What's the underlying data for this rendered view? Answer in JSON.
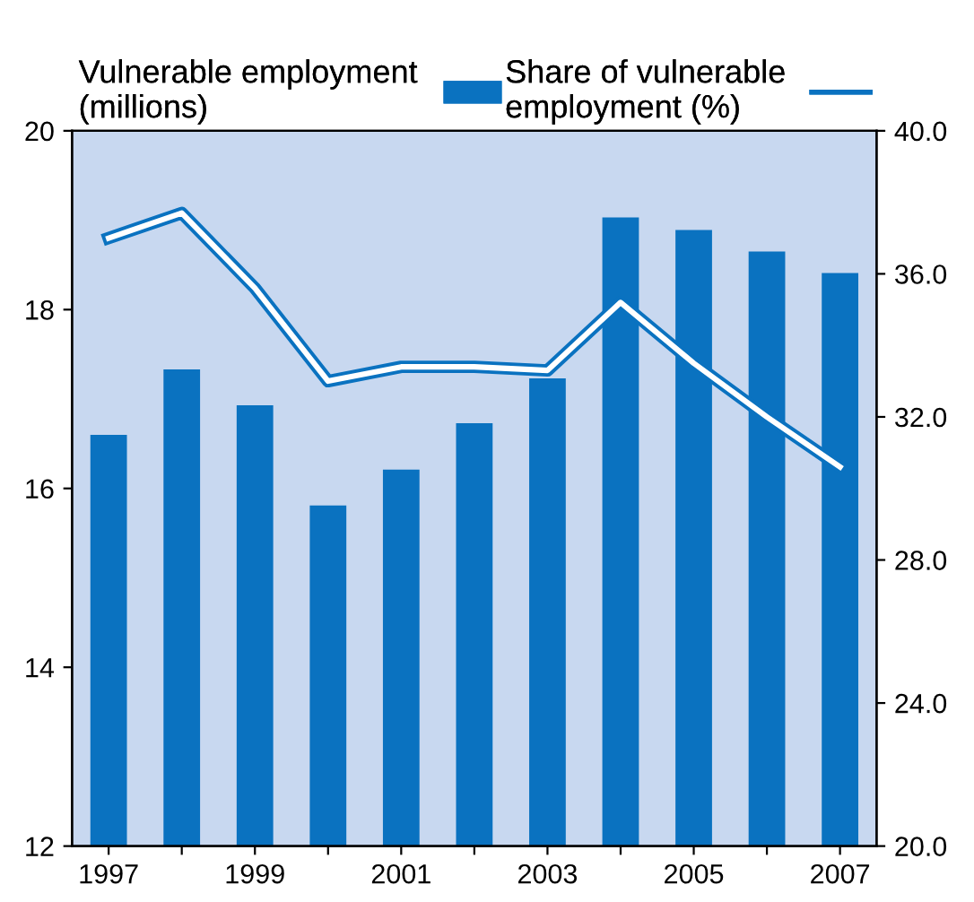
{
  "chart_data": {
    "type": "bar",
    "categories": [
      "1997",
      null,
      "1999",
      null,
      "2001",
      null,
      "2003",
      null,
      "2005",
      null,
      "2007"
    ],
    "series": [
      {
        "name": "Vulnerable employment\n(millions)",
        "color": "#0a72c0",
        "values": [
          16.6,
          17.33,
          16.93,
          15.81,
          16.21,
          16.73,
          17.23,
          19.03,
          18.89,
          18.65,
          18.41
        ]
      },
      {
        "name": "Share of vulnerable\nemployment (%)",
        "type": "line",
        "axis": "y2",
        "color": "#0a72c0",
        "values": [
          37.0,
          37.7,
          35.6,
          33.0,
          33.4,
          33.4,
          33.3,
          35.2,
          33.5,
          32.0,
          30.6
        ]
      }
    ],
    "ylim": [
      12,
      20
    ],
    "yticks": [
      12,
      14,
      16,
      18,
      20
    ],
    "y2lim": [
      20,
      40
    ],
    "y2ticks": [
      {
        "value": 20,
        "label": "20.0"
      },
      {
        "value": 24,
        "label": "24.0"
      },
      {
        "value": 28,
        "label": "28.0"
      },
      {
        "value": 32,
        "label": "32.0"
      },
      {
        "value": 36,
        "label": "36.0"
      },
      {
        "value": 40,
        "label": "40.0"
      }
    ],
    "grid": false,
    "legend": "top",
    "marker": "none"
  }
}
